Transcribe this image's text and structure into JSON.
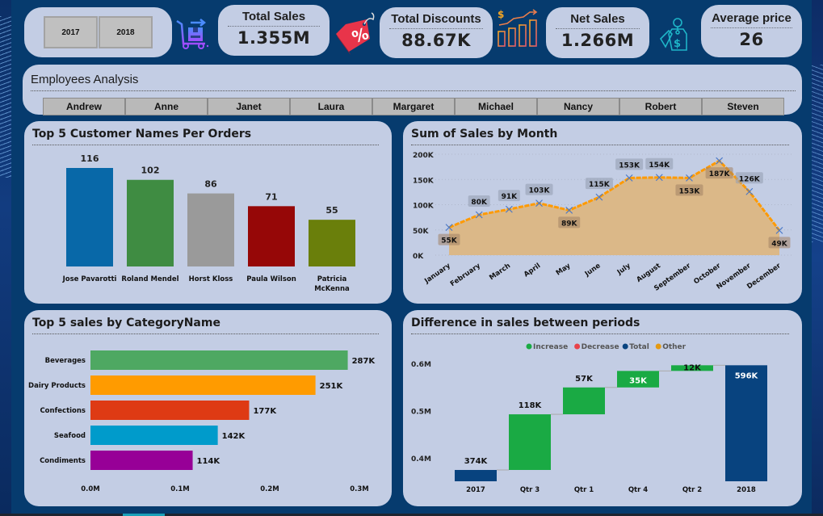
{
  "filters": {
    "years": [
      {
        "label": "2017"
      },
      {
        "label": "2018"
      }
    ]
  },
  "kpis": {
    "total_sales": {
      "title": "Total Sales",
      "value": "1.355M",
      "icon": "delivery-cart-icon"
    },
    "total_discounts": {
      "title": "Total Discounts",
      "value": "88.67K",
      "icon": "discount-tag-icon"
    },
    "net_sales": {
      "title": "Net Sales",
      "value": "1.266M",
      "icon": "growth-chart-icon"
    },
    "average_price": {
      "title": "Average price",
      "value": "26",
      "icon": "price-tag-icon"
    }
  },
  "employees": {
    "title": "Employees Analysis",
    "items": [
      {
        "label": "Andrew"
      },
      {
        "label": "Anne"
      },
      {
        "label": "Janet"
      },
      {
        "label": "Laura"
      },
      {
        "label": "Margaret"
      },
      {
        "label": "Michael"
      },
      {
        "label": "Nancy"
      },
      {
        "label": "Robert"
      },
      {
        "label": "Steven"
      }
    ]
  },
  "chart_data": [
    {
      "id": "top-customers",
      "type": "bar",
      "title": "Top 5 Customer Names Per Orders",
      "categories": [
        "Jose Pavarotti",
        "Roland Mendel",
        "Horst Kloss",
        "Paula Wilson",
        "Patricia McKenna"
      ],
      "category_lines": [
        [
          "Jose Pavarotti"
        ],
        [
          "Roland Mendel"
        ],
        [
          "Horst Kloss"
        ],
        [
          "Paula Wilson"
        ],
        [
          "Patricia",
          "McKenna"
        ]
      ],
      "values": [
        116,
        102,
        86,
        71,
        55
      ],
      "labels": [
        "116",
        "102",
        "86",
        "71",
        "55"
      ],
      "colors": [
        "#0868a8",
        "#3f8c42",
        "#9a9a9a",
        "#960707",
        "#6a7f0b"
      ],
      "ylim": [
        0,
        116
      ],
      "xlabel": "",
      "ylabel": ""
    },
    {
      "id": "sales-by-month",
      "type": "area",
      "title": "Sum of Sales by Month",
      "categories": [
        "January",
        "February",
        "March",
        "April",
        "May",
        "June",
        "July",
        "August",
        "September",
        "October",
        "November",
        "December"
      ],
      "values": [
        55,
        80,
        91,
        103,
        89,
        115,
        153,
        154,
        153,
        187,
        126,
        49
      ],
      "labels": [
        "55K",
        "80K",
        "91K",
        "103K",
        "89K",
        "115K",
        "153K",
        "154K",
        "153K",
        "187K",
        "126K",
        "49K"
      ],
      "label_position": [
        "below",
        "above",
        "above",
        "above",
        "below",
        "above",
        "above",
        "above",
        "below",
        "below",
        "above",
        "below"
      ],
      "yticks": [
        "0K",
        "50K",
        "100K",
        "150K",
        "200K"
      ],
      "ylim": [
        0,
        200
      ],
      "units": "thousands",
      "line_color": "#ff9a00",
      "fill_color": "#dbb888",
      "grid": true,
      "xlabel": "",
      "ylabel": ""
    },
    {
      "id": "sales-by-category",
      "type": "bar",
      "orientation": "horizontal",
      "title": "Top 5 sales by CategoryName",
      "categories": [
        "Beverages",
        "Dairy Products",
        "Confections",
        "Seafood",
        "Condiments"
      ],
      "values": [
        287,
        251,
        177,
        142,
        114
      ],
      "labels": [
        "287K",
        "251K",
        "177K",
        "142K",
        "114K"
      ],
      "colors": [
        "#4ea862",
        "#ff9b00",
        "#de3a14",
        "#009bcb",
        "#970097"
      ],
      "xticks": [
        "0.0M",
        "0.1M",
        "0.2M",
        "0.3M"
      ],
      "xlim": [
        0,
        300
      ],
      "units": "thousands",
      "xlabel": "",
      "ylabel": ""
    },
    {
      "id": "sales-difference",
      "type": "waterfall",
      "title": "Difference in sales between periods",
      "legend": [
        {
          "label": "Increase",
          "color": "#1aaa44"
        },
        {
          "label": "Decrease",
          "color": "#e8424a"
        },
        {
          "label": "Total",
          "color": "#08437f"
        },
        {
          "label": "Other",
          "color": "#e59a12"
        }
      ],
      "legend_position": "top-center",
      "categories": [
        "2017",
        "Qtr 3",
        "Qtr 1",
        "Qtr 4",
        "Qtr 2",
        "2018"
      ],
      "kinds": [
        "total",
        "increase",
        "increase",
        "increase",
        "increase",
        "total"
      ],
      "values": [
        374,
        118,
        57,
        35,
        12,
        596
      ],
      "labels": [
        "374K",
        "118K",
        "57K",
        "35K",
        "12K",
        "596K"
      ],
      "yticks": [
        "0.4M",
        "0.5M",
        "0.6M"
      ],
      "ylim": [
        350,
        600
      ],
      "units": "thousands",
      "xlabel": "",
      "ylabel": ""
    }
  ]
}
